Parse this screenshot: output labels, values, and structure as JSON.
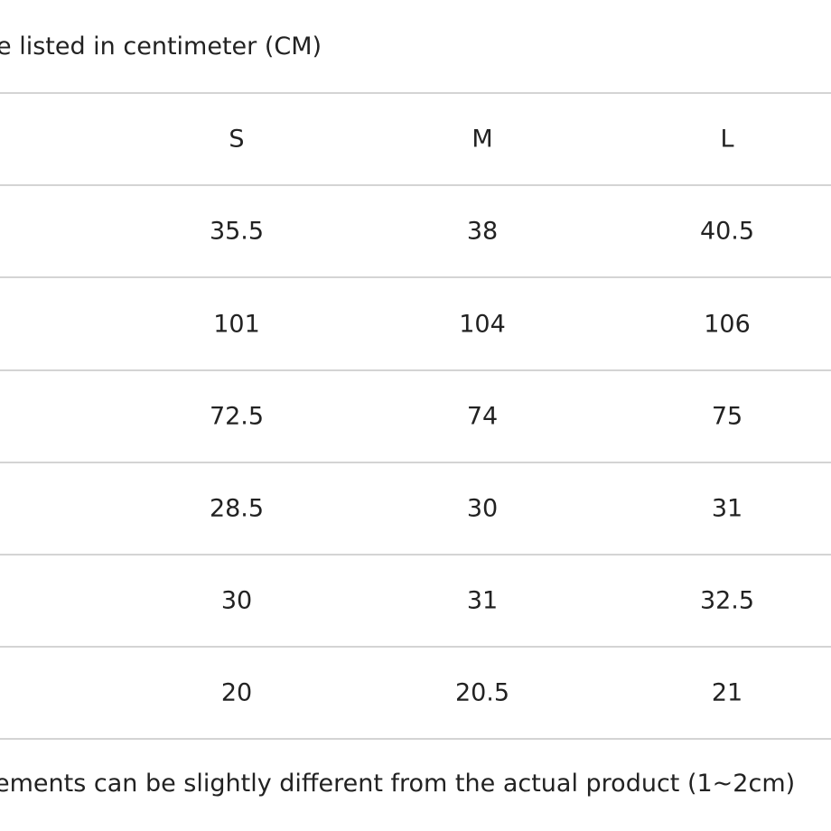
{
  "note_top": "e listed in centimeter (CM)",
  "table": {
    "header": [
      "S",
      "M",
      "L"
    ],
    "rows": [
      [
        35.5,
        38,
        40.5
      ],
      [
        101,
        104,
        106
      ],
      [
        72.5,
        74,
        75
      ],
      [
        28.5,
        30,
        31
      ],
      [
        30,
        31,
        32.5
      ],
      [
        20,
        20.5,
        21
      ]
    ]
  },
  "note_bottom": "ements can be slightly different from the actual product (1~2cm)"
}
